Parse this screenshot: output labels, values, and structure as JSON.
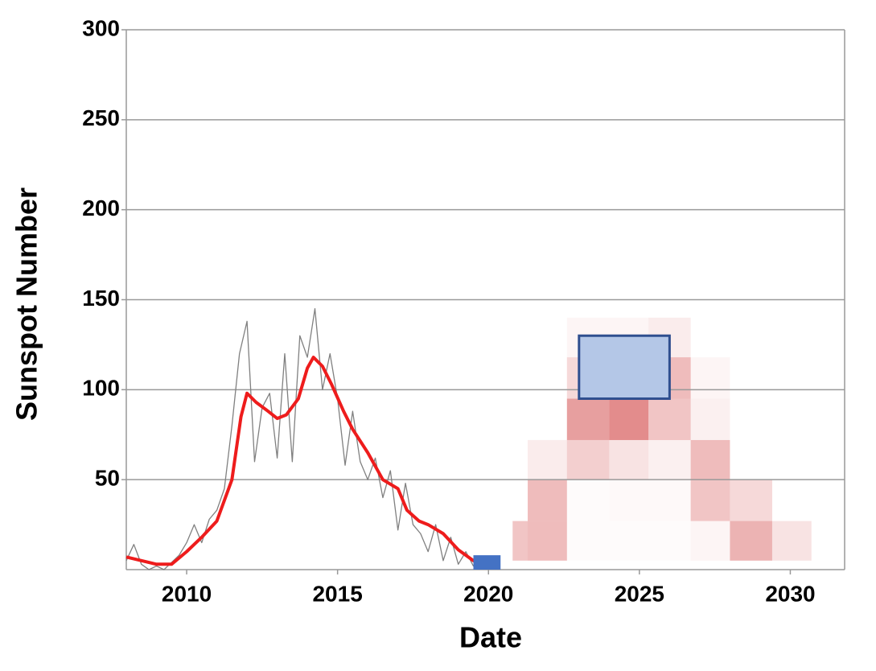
{
  "chart_data": {
    "type": "line",
    "x_label": "Date",
    "y_label": "Sunspot Number",
    "xlim": [
      2008,
      2031.8
    ],
    "ylim": [
      0,
      300
    ],
    "xticks": [
      2010,
      2015,
      2020,
      2025,
      2030
    ],
    "yticks": [
      50,
      100,
      150,
      200,
      250,
      300
    ],
    "grid": true,
    "series": [
      {
        "color": "#808080",
        "x": [
          2008.0,
          2008.25,
          2008.5,
          2008.75,
          2009.0,
          2009.25,
          2009.5,
          2009.75,
          2010.0,
          2010.25,
          2010.5,
          2010.75,
          2011.0,
          2011.25,
          2011.5,
          2011.75,
          2012.0,
          2012.25,
          2012.5,
          2012.75,
          2013.0,
          2013.25,
          2013.5,
          2013.75,
          2014.0,
          2014.25,
          2014.5,
          2014.75,
          2015.0,
          2015.25,
          2015.5,
          2015.75,
          2016.0,
          2016.25,
          2016.5,
          2016.75,
          2017.0,
          2017.25,
          2017.5,
          2017.75,
          2018.0,
          2018.25,
          2018.5,
          2018.75,
          2019.0,
          2019.25,
          2019.5,
          2019.75
        ],
        "values": [
          5,
          14,
          3,
          0,
          2,
          0,
          4,
          8,
          15,
          25,
          15,
          28,
          33,
          45,
          80,
          120,
          138,
          60,
          90,
          98,
          62,
          120,
          60,
          130,
          118,
          145,
          100,
          120,
          95,
          58,
          88,
          60,
          50,
          62,
          40,
          55,
          22,
          48,
          25,
          20,
          10,
          25,
          5,
          18,
          3,
          10,
          2,
          1
        ]
      },
      {
        "color": "#ee1c1c",
        "x": [
          2008.0,
          2008.5,
          2009.0,
          2009.5,
          2010.0,
          2010.5,
          2011.0,
          2011.5,
          2011.8,
          2012.0,
          2012.3,
          2012.7,
          2013.0,
          2013.3,
          2013.7,
          2014.0,
          2014.2,
          2014.5,
          2014.8,
          2015.2,
          2015.5,
          2016.0,
          2016.5,
          2017.0,
          2017.3,
          2017.7,
          2018.0,
          2018.5,
          2019.0,
          2019.5,
          2019.9
        ],
        "values": [
          7,
          5,
          3,
          3,
          10,
          18,
          27,
          50,
          85,
          98,
          93,
          88,
          84,
          86,
          95,
          112,
          118,
          113,
          103,
          88,
          78,
          65,
          50,
          45,
          33,
          27,
          25,
          20,
          11,
          5,
          2
        ]
      }
    ],
    "heatmap": {
      "color": "#d04040",
      "xbins": [
        2020.8,
        2021.3,
        2022.6,
        2024.0,
        2025.3,
        2026.7,
        2028.0,
        2029.4,
        2030.7
      ],
      "ybins": [
        5,
        27,
        50,
        72,
        95,
        118,
        140
      ],
      "density": [
        [
          0.3,
          0.35,
          0.02,
          0.02,
          0.02,
          0.05,
          0.4,
          0.15
        ],
        [
          0,
          0.35,
          0.02,
          0.03,
          0.03,
          0.3,
          0.2,
          0
        ],
        [
          0,
          0.1,
          0.25,
          0.15,
          0.08,
          0.35,
          0,
          0
        ],
        [
          0,
          0,
          0.5,
          0.6,
          0.3,
          0.08,
          0,
          0
        ],
        [
          0,
          0,
          0.2,
          0.2,
          0.35,
          0.05,
          0,
          0
        ],
        [
          0,
          0,
          0.05,
          0.05,
          0.1,
          0,
          0,
          0
        ]
      ]
    },
    "ranges": [
      {
        "x": [
          2019.5,
          2020.4
        ],
        "y": [
          0,
          8
        ],
        "color": "#4472c4"
      },
      {
        "x": [
          2023.0,
          2026.0
        ],
        "y": [
          95,
          130
        ],
        "color": "#b4c7e7"
      }
    ]
  }
}
